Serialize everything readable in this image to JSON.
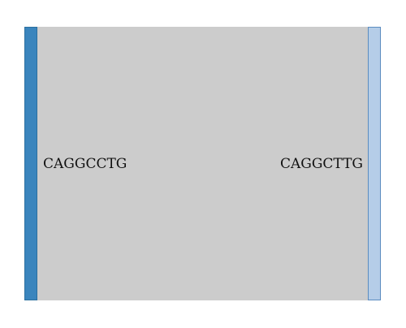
{
  "diagram": {
    "type": "sankey",
    "nodes": [
      {
        "label": "CAGGCCTG",
        "color": "#3a85bd",
        "side": "left"
      },
      {
        "label": "CAGGCTTG",
        "color": "#b5cde8",
        "side": "right"
      }
    ],
    "link": {
      "color": "#cccccc"
    }
  }
}
